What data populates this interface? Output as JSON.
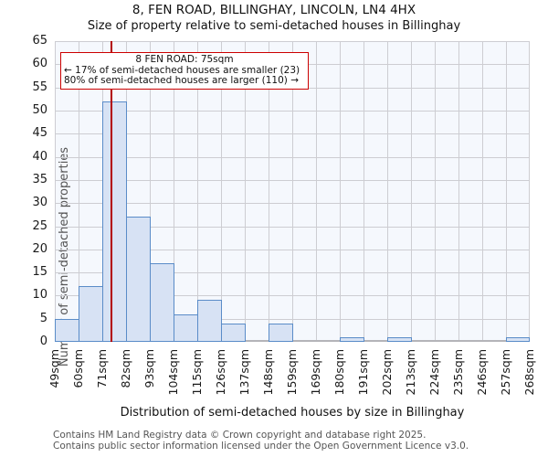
{
  "title": "8, FEN ROAD, BILLINGHAY, LINCOLN, LN4 4HX",
  "subtitle": "Size of property relative to semi-detached houses in Billinghay",
  "annotation": {
    "line1": "8 FEN ROAD: 75sqm",
    "line2": "← 17% of semi-detached houses are smaller (23)",
    "line3": "80% of semi-detached houses are larger (110) →"
  },
  "chart_data": {
    "type": "bar",
    "title": "8, FEN ROAD, BILLINGHAY, LINCOLN, LN4 4HX",
    "subtitle": "Size of property relative to semi-detached houses in Billinghay",
    "categories": [
      "49sqm",
      "60sqm",
      "71sqm",
      "82sqm",
      "93sqm",
      "104sqm",
      "115sqm",
      "126sqm",
      "137sqm",
      "148sqm",
      "159sqm",
      "169sqm",
      "180sqm",
      "191sqm",
      "202sqm",
      "213sqm",
      "224sqm",
      "235sqm",
      "246sqm",
      "257sqm",
      "268sqm"
    ],
    "values": [
      5,
      12,
      52,
      27,
      17,
      6,
      9,
      4,
      0,
      4,
      0,
      0,
      1,
      0,
      1,
      0,
      0,
      0,
      0,
      1
    ],
    "xlabel": "Distribution of semi-detached houses by size in Billinghay",
    "ylabel": "Number of semi-detached properties",
    "ylim": [
      0,
      65
    ],
    "ytick_step": 5,
    "x_range_sqm": [
      49,
      268
    ],
    "marker_sqm": 75,
    "grid": true,
    "legend": false
  },
  "footer": {
    "line1": "Contains HM Land Registry data © Crown copyright and database right 2025.",
    "line2": "Contains public sector information licensed under the Open Government Licence v3.0."
  },
  "colors": {
    "bar_fill": "#d7e2f4",
    "bar_border": "#5a8cc8",
    "marker_line": "#b30000",
    "callout_border": "#cc0000",
    "grid": "#cdcdd2",
    "plot_bg": "#f5f8fd",
    "axis_line": "#b4b4b9"
  }
}
